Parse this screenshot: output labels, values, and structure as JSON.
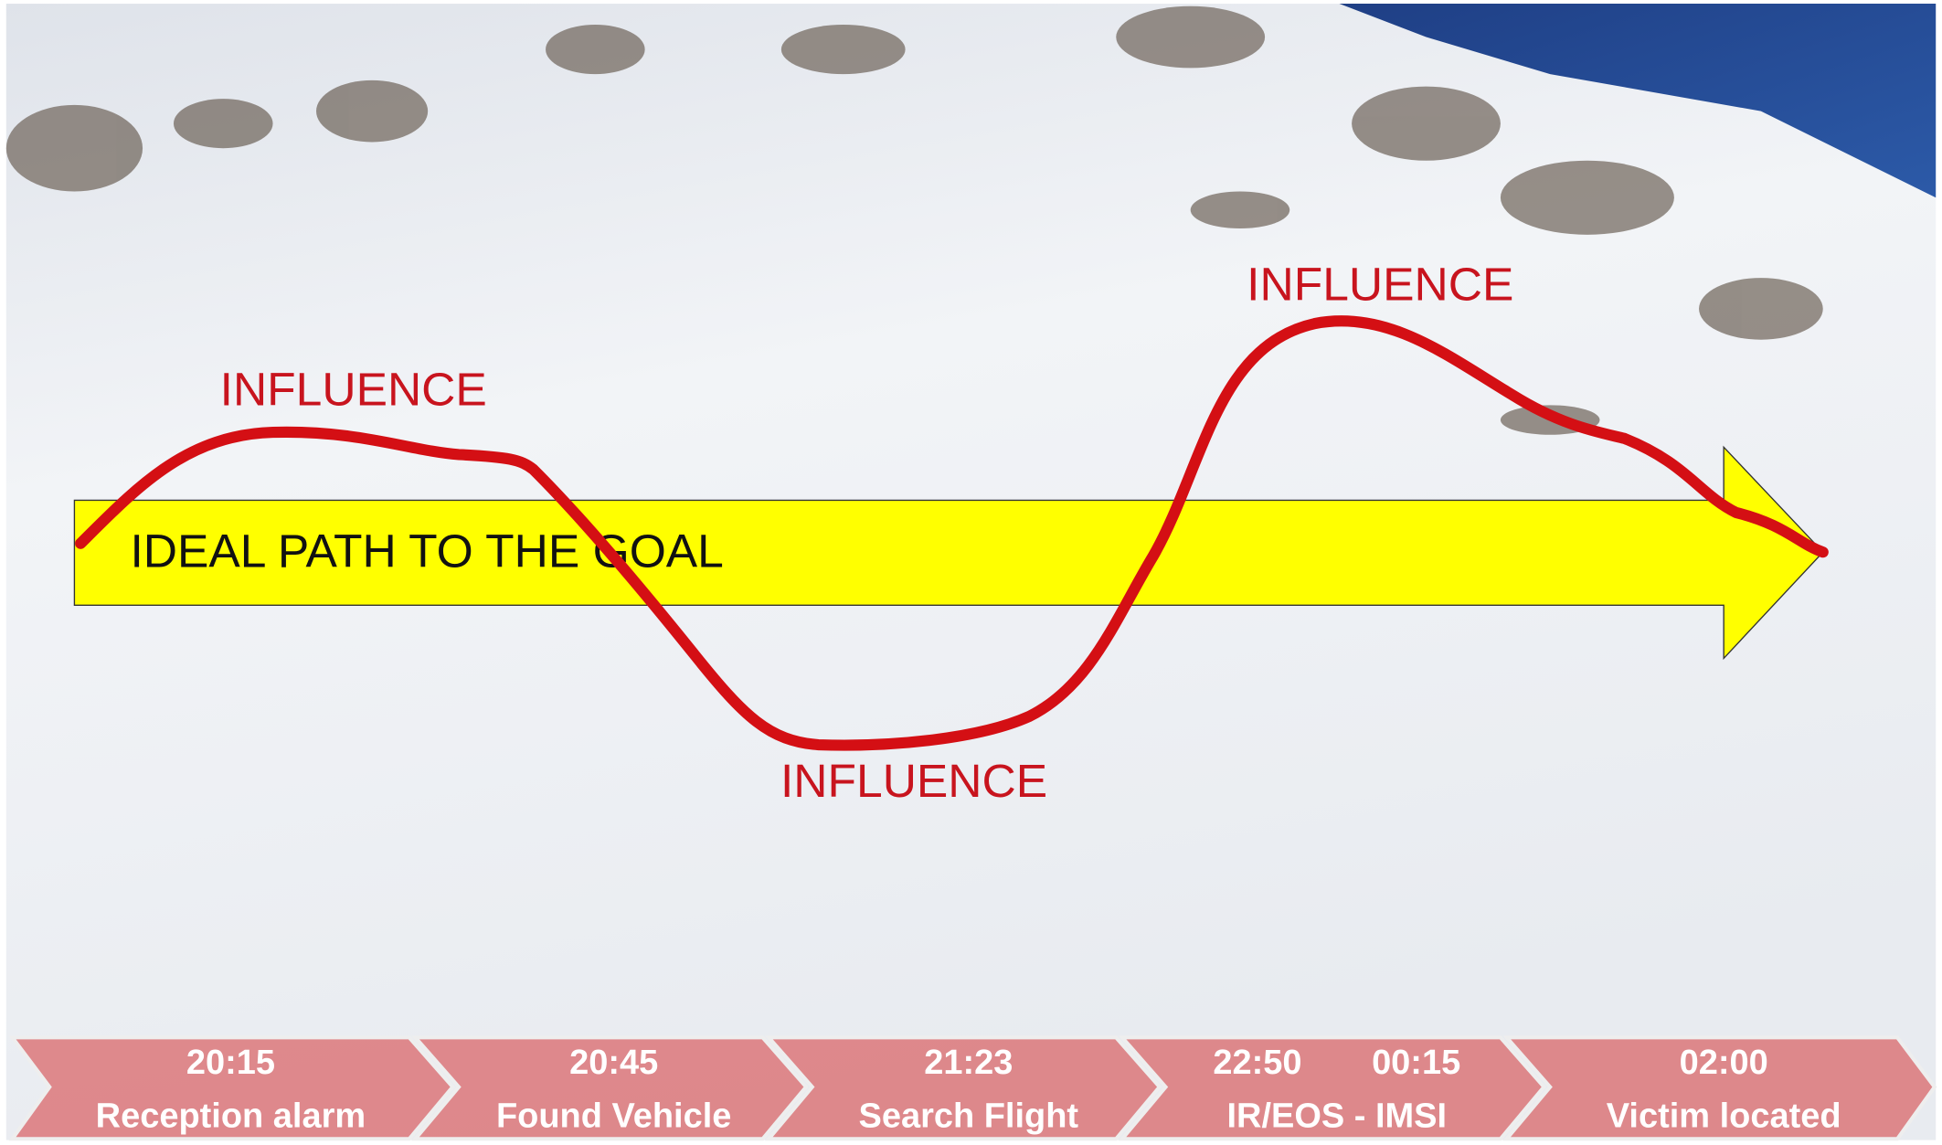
{
  "arrow": {
    "label": "IDEAL PATH TO THE GOAL"
  },
  "influence_labels": [
    "INFLUENCE",
    "INFLUENCE",
    "INFLUENCE"
  ],
  "timeline": [
    {
      "times": [
        "20:15"
      ],
      "label": "Reception alarm"
    },
    {
      "times": [
        "20:45"
      ],
      "label": "Found Vehicle"
    },
    {
      "times": [
        "21:23"
      ],
      "label": "Search Flight"
    },
    {
      "times": [
        "22:50",
        "00:15"
      ],
      "label": "IR/EOS - IMSI"
    },
    {
      "times": [
        "02:00"
      ],
      "label": "Victim located"
    }
  ]
}
